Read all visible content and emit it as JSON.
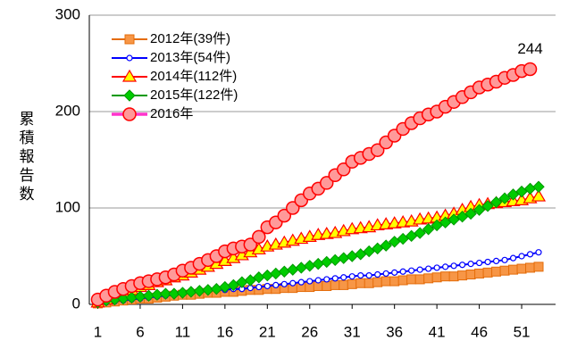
{
  "chart_data": {
    "type": "line",
    "y_label": "累積報告数",
    "x": [
      1,
      2,
      3,
      4,
      5,
      6,
      7,
      8,
      9,
      10,
      11,
      12,
      13,
      14,
      15,
      16,
      17,
      18,
      19,
      20,
      21,
      22,
      23,
      24,
      25,
      26,
      27,
      28,
      29,
      30,
      31,
      32,
      33,
      34,
      35,
      36,
      37,
      38,
      39,
      40,
      41,
      42,
      43,
      44,
      45,
      46,
      47,
      48,
      49,
      50,
      51,
      52,
      53
    ],
    "xlim": [
      0,
      55
    ],
    "xticks": [
      1,
      6,
      11,
      16,
      21,
      26,
      31,
      36,
      41,
      46,
      51
    ],
    "ylim": [
      0,
      300
    ],
    "yticks": [
      0,
      100,
      200,
      300
    ],
    "grid": true,
    "legend": "top-left",
    "series": [
      {
        "name": "2012年(39件)",
        "color": "#e46c0a",
        "marker": "square",
        "marker_fill": "#f79646",
        "values": [
          1,
          2,
          3,
          4,
          5,
          6,
          6,
          7,
          8,
          9,
          10,
          10,
          11,
          12,
          12,
          13,
          13,
          14,
          15,
          15,
          16,
          16,
          17,
          17,
          18,
          18,
          19,
          19,
          20,
          20,
          21,
          22,
          22,
          23,
          24,
          24,
          25,
          26,
          26,
          27,
          28,
          29,
          29,
          30,
          31,
          32,
          33,
          34,
          35,
          36,
          37,
          38,
          39
        ]
      },
      {
        "name": "2013年(54件)",
        "color": "#0000ff",
        "marker": "circle-small",
        "marker_fill": "#ffffff",
        "values": [
          1,
          2,
          3,
          4,
          5,
          6,
          7,
          8,
          9,
          10,
          11,
          12,
          13,
          14,
          15,
          15,
          16,
          16,
          17,
          18,
          19,
          20,
          21,
          22,
          23,
          24,
          25,
          26,
          27,
          28,
          29,
          30,
          30,
          31,
          32,
          33,
          34,
          35,
          36,
          37,
          38,
          39,
          40,
          41,
          42,
          43,
          44,
          45,
          46,
          48,
          50,
          52,
          54
        ]
      },
      {
        "name": "2014年(112件)",
        "color": "#ff0000",
        "marker": "triangle",
        "marker_fill": "#ffff00",
        "values": [
          2,
          5,
          8,
          11,
          15,
          18,
          20,
          23,
          25,
          28,
          30,
          33,
          36,
          39,
          42,
          45,
          48,
          51,
          54,
          57,
          60,
          62,
          64,
          66,
          68,
          70,
          72,
          73,
          74,
          76,
          78,
          79,
          80,
          82,
          83,
          84,
          85,
          86,
          88,
          89,
          90,
          92,
          94,
          98,
          101,
          103,
          104,
          105,
          106,
          107,
          108,
          110,
          112
        ]
      },
      {
        "name": "2015年(122件)",
        "color": "#009900",
        "marker": "diamond",
        "marker_fill": "#00cc00",
        "values": [
          2,
          4,
          5,
          6,
          7,
          8,
          9,
          10,
          11,
          11,
          12,
          13,
          14,
          15,
          16,
          18,
          20,
          23,
          25,
          28,
          30,
          32,
          34,
          36,
          38,
          40,
          42,
          44,
          46,
          48,
          50,
          52,
          55,
          58,
          61,
          65,
          68,
          71,
          74,
          78,
          82,
          85,
          88,
          91,
          94,
          98,
          102,
          106,
          110,
          114,
          117,
          120,
          122
        ]
      },
      {
        "name": "2016年",
        "color": "#ff33cc",
        "marker": "circle-large",
        "marker_fill": "#ff9999",
        "values": [
          5,
          9,
          13,
          16,
          19,
          22,
          24,
          26,
          28,
          31,
          35,
          38,
          42,
          46,
          50,
          55,
          58,
          60,
          62,
          70,
          80,
          85,
          92,
          100,
          108,
          115,
          120,
          126,
          134,
          140,
          148,
          152,
          156,
          160,
          168,
          175,
          182,
          188,
          193,
          197,
          200,
          205,
          210,
          215,
          220,
          225,
          228,
          231,
          235,
          238,
          242,
          244,
          null
        ]
      }
    ]
  }
}
